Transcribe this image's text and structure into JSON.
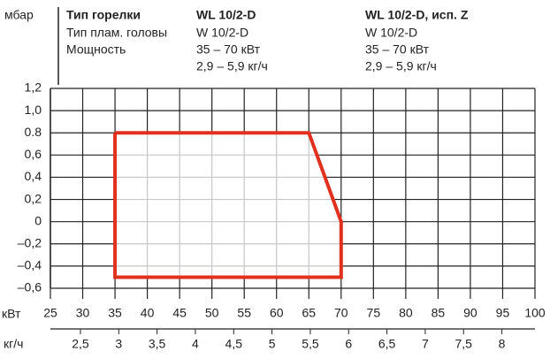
{
  "header": {
    "columns": [
      "Тип горелки",
      "WL 10/2-D",
      "WL 10/2-D, исп. Z"
    ],
    "rows": [
      [
        "Тип плам. головы",
        "W 10/2-D",
        "W 10/2-D"
      ],
      [
        "Мощность",
        "35 – 70 кВт",
        "35 – 70 кВт"
      ],
      [
        null,
        "2,9 – 5,9 кг/ч",
        "2,9 – 5,9 кг/ч"
      ]
    ]
  },
  "chart_data": {
    "type": "line",
    "y_label": "мбар",
    "x_label": "кВт",
    "x2_label": "кг/ч",
    "x": [
      35,
      65,
      70,
      70,
      35,
      35
    ],
    "series": [
      {
        "color": "#e1301e",
        "values": [
          0.8,
          0.8,
          0,
          -0.5,
          -0.5,
          0.8
        ]
      }
    ],
    "xlim": [
      25,
      100
    ],
    "xticks": [
      25,
      30,
      35,
      40,
      45,
      50,
      55,
      60,
      65,
      70,
      75,
      80,
      85,
      90,
      95,
      100
    ],
    "ylim": [
      -0.6,
      1.2
    ],
    "yticks": [
      {
        "value": -0.6,
        "label": "–0,6"
      },
      {
        "value": -0.4,
        "label": "–0,4"
      },
      {
        "value": -0.2,
        "label": "–0,2"
      },
      0,
      {
        "value": 0.2,
        "label": "0,2"
      },
      {
        "value": 0.4,
        "label": "0,4"
      },
      {
        "value": 0.6,
        "label": "0,6"
      },
      {
        "value": 0.8,
        "label": "0.8"
      },
      {
        "value": 1.0,
        "label": "1,0"
      },
      {
        "value": 1.2,
        "label": "1,2"
      }
    ],
    "x2lim": [
      2.108,
      8.432
    ],
    "x2ticks": [
      {
        "value": 2.5,
        "label": "2,5"
      },
      3,
      {
        "value": 3.5,
        "label": "3,5"
      },
      4,
      {
        "value": 4.5,
        "label": "4,5"
      },
      5,
      {
        "value": 5.5,
        "label": "5,5"
      },
      6,
      {
        "value": 6.5,
        "label": "6,5"
      },
      7,
      {
        "value": 7.5,
        "label": "7,5"
      },
      8
    ],
    "grid": true
  }
}
